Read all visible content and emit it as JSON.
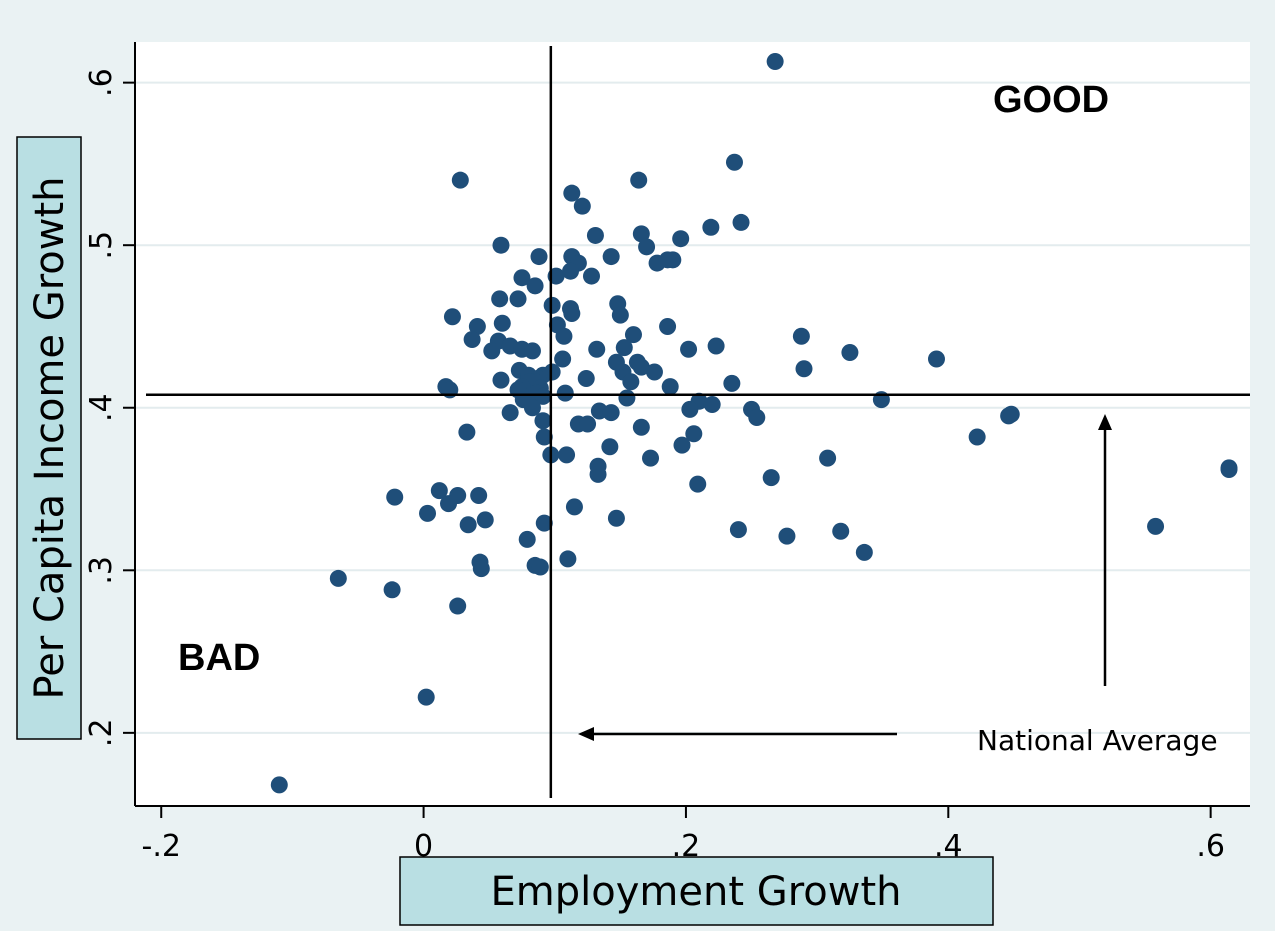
{
  "chart_data": {
    "type": "scatter",
    "xlabel": "Employment Growth",
    "ylabel": "Per Capita Income Growth",
    "xlim": [
      -0.22,
      0.63
    ],
    "ylim": [
      0.155,
      0.625
    ],
    "x_ticks": [
      -0.2,
      0,
      0.2,
      0.4,
      0.6
    ],
    "x_tick_labels": [
      "-.2",
      "0",
      ".2",
      ".4",
      ".6"
    ],
    "y_ticks": [
      0.2,
      0.3,
      0.4,
      0.5,
      0.6
    ],
    "y_tick_labels": [
      ".2",
      ".3",
      ".4",
      ".5",
      ".6"
    ],
    "grid": "horizontal",
    "reference_lines": {
      "x": 0.097,
      "y": 0.408
    },
    "annotations": {
      "good": "GOOD",
      "bad": "BAD",
      "national_average": "National Average"
    },
    "colors": {
      "marker": "#1f4e79",
      "plot_background": "#ffffff",
      "outer_background": "#eaf2f3",
      "axis_title_box": "#b9dfe3",
      "grid": "#e3ecee"
    },
    "points": [
      [
        0.268,
        0.613
      ],
      [
        0.237,
        0.551
      ],
      [
        0.028,
        0.54
      ],
      [
        0.164,
        0.54
      ],
      [
        0.113,
        0.532
      ],
      [
        0.121,
        0.524
      ],
      [
        0.242,
        0.514
      ],
      [
        0.219,
        0.511
      ],
      [
        0.166,
        0.507
      ],
      [
        0.131,
        0.506
      ],
      [
        0.196,
        0.504
      ],
      [
        0.059,
        0.5
      ],
      [
        0.17,
        0.499
      ],
      [
        0.088,
        0.493
      ],
      [
        0.113,
        0.493
      ],
      [
        0.143,
        0.493
      ],
      [
        0.19,
        0.491
      ],
      [
        0.186,
        0.491
      ],
      [
        0.178,
        0.489
      ],
      [
        0.118,
        0.489
      ],
      [
        0.128,
        0.481
      ],
      [
        0.101,
        0.481
      ],
      [
        0.075,
        0.48
      ],
      [
        0.112,
        0.484
      ],
      [
        0.085,
        0.475
      ],
      [
        0.058,
        0.467
      ],
      [
        0.072,
        0.467
      ],
      [
        0.148,
        0.464
      ],
      [
        0.098,
        0.463
      ],
      [
        0.112,
        0.461
      ],
      [
        0.113,
        0.458
      ],
      [
        0.15,
        0.457
      ],
      [
        0.022,
        0.456
      ],
      [
        0.102,
        0.451
      ],
      [
        0.041,
        0.45
      ],
      [
        0.06,
        0.452
      ],
      [
        0.186,
        0.45
      ],
      [
        0.16,
        0.445
      ],
      [
        0.107,
        0.444
      ],
      [
        0.288,
        0.444
      ],
      [
        0.037,
        0.442
      ],
      [
        0.057,
        0.441
      ],
      [
        0.066,
        0.438
      ],
      [
        0.075,
        0.436
      ],
      [
        0.223,
        0.438
      ],
      [
        0.153,
        0.437
      ],
      [
        0.132,
        0.436
      ],
      [
        0.052,
        0.435
      ],
      [
        0.083,
        0.435
      ],
      [
        0.202,
        0.436
      ],
      [
        0.325,
        0.434
      ],
      [
        0.391,
        0.43
      ],
      [
        0.106,
        0.43
      ],
      [
        0.147,
        0.428
      ],
      [
        0.163,
        0.428
      ],
      [
        0.166,
        0.425
      ],
      [
        0.29,
        0.424
      ],
      [
        0.152,
        0.422
      ],
      [
        0.176,
        0.422
      ],
      [
        0.098,
        0.422
      ],
      [
        0.073,
        0.423
      ],
      [
        0.091,
        0.42
      ],
      [
        0.08,
        0.42
      ],
      [
        0.087,
        0.418
      ],
      [
        0.059,
        0.417
      ],
      [
        0.124,
        0.418
      ],
      [
        0.085,
        0.416
      ],
      [
        0.081,
        0.416
      ],
      [
        0.158,
        0.416
      ],
      [
        0.235,
        0.415
      ],
      [
        0.188,
        0.413
      ],
      [
        0.017,
        0.413
      ],
      [
        0.02,
        0.411
      ],
      [
        0.075,
        0.413
      ],
      [
        0.089,
        0.412
      ],
      [
        0.072,
        0.411
      ],
      [
        0.108,
        0.409
      ],
      [
        0.086,
        0.409
      ],
      [
        0.091,
        0.407
      ],
      [
        0.076,
        0.405
      ],
      [
        0.155,
        0.406
      ],
      [
        0.349,
        0.405
      ],
      [
        0.21,
        0.404
      ],
      [
        0.22,
        0.402
      ],
      [
        0.083,
        0.4
      ],
      [
        0.203,
        0.399
      ],
      [
        0.25,
        0.399
      ],
      [
        0.134,
        0.398
      ],
      [
        0.448,
        0.396
      ],
      [
        0.446,
        0.395
      ],
      [
        0.143,
        0.397
      ],
      [
        0.066,
        0.397
      ],
      [
        0.254,
        0.394
      ],
      [
        0.091,
        0.392
      ],
      [
        0.118,
        0.39
      ],
      [
        0.125,
        0.39
      ],
      [
        0.166,
        0.388
      ],
      [
        0.033,
        0.385
      ],
      [
        0.206,
        0.384
      ],
      [
        0.092,
        0.382
      ],
      [
        0.422,
        0.382
      ],
      [
        0.142,
        0.376
      ],
      [
        0.197,
        0.377
      ],
      [
        0.097,
        0.371
      ],
      [
        0.109,
        0.371
      ],
      [
        0.173,
        0.369
      ],
      [
        0.308,
        0.369
      ],
      [
        0.133,
        0.364
      ],
      [
        0.614,
        0.363
      ],
      [
        0.614,
        0.362
      ],
      [
        0.133,
        0.359
      ],
      [
        0.265,
        0.357
      ],
      [
        0.209,
        0.353
      ],
      [
        0.012,
        0.349
      ],
      [
        -0.022,
        0.345
      ],
      [
        0.026,
        0.346
      ],
      [
        0.042,
        0.346
      ],
      [
        0.019,
        0.341
      ],
      [
        0.115,
        0.339
      ],
      [
        0.003,
        0.335
      ],
      [
        0.147,
        0.332
      ],
      [
        0.047,
        0.331
      ],
      [
        0.034,
        0.328
      ],
      [
        0.092,
        0.329
      ],
      [
        0.558,
        0.327
      ],
      [
        0.24,
        0.325
      ],
      [
        0.318,
        0.324
      ],
      [
        0.277,
        0.321
      ],
      [
        0.079,
        0.319
      ],
      [
        0.336,
        0.311
      ],
      [
        0.11,
        0.307
      ],
      [
        0.043,
        0.305
      ],
      [
        0.085,
        0.303
      ],
      [
        0.089,
        0.302
      ],
      [
        0.044,
        0.301
      ],
      [
        -0.065,
        0.295
      ],
      [
        -0.024,
        0.288
      ],
      [
        0.026,
        0.278
      ],
      [
        0.002,
        0.222
      ],
      [
        -0.11,
        0.168
      ]
    ]
  }
}
